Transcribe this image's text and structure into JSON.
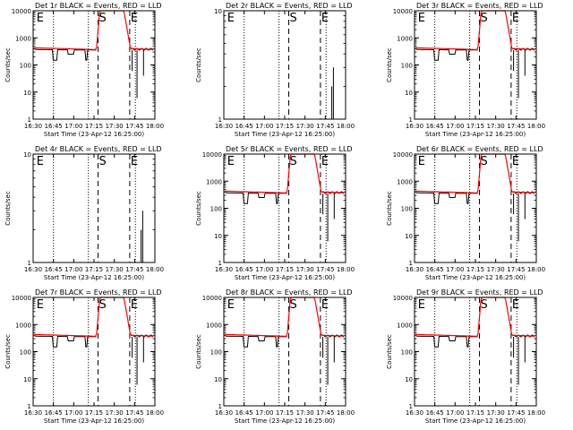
{
  "chart_data": [
    {
      "type": "line",
      "title": "Det 1r  BLACK = Events, RED = LLD",
      "xlabel": "Start Time (23-Apr-12 16:25:00)",
      "ylabel": "Counts/sec",
      "yscale": "log",
      "ylim": [
        1,
        10000
      ],
      "yticks": [
        "1",
        "10",
        "100",
        "1000",
        "10000"
      ],
      "xlim": [
        16.5,
        18.0
      ],
      "xticks": [
        "16:30",
        "16:45",
        "17:00",
        "17:15",
        "17:30",
        "17:45",
        "18:00"
      ],
      "markers": [
        {
          "label": "E",
          "x": 16.53
        },
        {
          "label": "S",
          "x": 17.3
        },
        {
          "label": "E",
          "x": 17.69
        }
      ],
      "dotted_lines": [
        16.75,
        17.18,
        17.76
      ],
      "dashed_lines": [
        17.3,
        17.69
      ],
      "has_rise": true,
      "notch_at": 17.16,
      "series": [
        {
          "name": "Events",
          "color": "#000000"
        },
        {
          "name": "LLD",
          "color": "#ff0000"
        }
      ]
    },
    {
      "type": "line",
      "title": "Det 2r  BLACK = Events, RED = LLD",
      "xlabel": "Start Time (23-Apr-12 16:25:00)",
      "ylabel": "Counts/sec",
      "yscale": "log",
      "ylim": [
        1,
        10
      ],
      "yticks": [
        "1",
        "10"
      ],
      "xlim": [
        16.5,
        18.0
      ],
      "xticks": [
        "16:30",
        "16:45",
        "17:00",
        "17:15",
        "17:30",
        "17:45",
        "18:00"
      ],
      "markers": [
        {
          "label": "E",
          "x": 16.53
        },
        {
          "label": "S",
          "x": 17.3
        },
        {
          "label": "E",
          "x": 17.69
        }
      ],
      "dotted_lines": [
        16.75,
        17.18,
        17.76
      ],
      "dashed_lines": [
        17.3,
        17.69
      ],
      "has_rise": false,
      "notch_at": 17.16,
      "series": [
        {
          "name": "Events",
          "color": "#000000"
        },
        {
          "name": "LLD",
          "color": "#ff0000"
        }
      ]
    },
    {
      "type": "line",
      "title": "Det 3r  BLACK = Events, RED = LLD",
      "xlabel": "Start Time (23-Apr-12 16:25:00)",
      "ylabel": "Counts/sec",
      "yscale": "log",
      "ylim": [
        1,
        10000
      ],
      "yticks": [
        "1",
        "10",
        "100",
        "1000",
        "10000"
      ],
      "xlim": [
        16.5,
        18.0
      ],
      "xticks": [
        "16:30",
        "16:45",
        "17:00",
        "17:15",
        "17:30",
        "17:45",
        "18:00"
      ],
      "markers": [
        {
          "label": "E",
          "x": 16.53
        },
        {
          "label": "S",
          "x": 17.3
        },
        {
          "label": "E",
          "x": 17.69
        }
      ],
      "dotted_lines": [
        16.75,
        17.18,
        17.76
      ],
      "dashed_lines": [
        17.3,
        17.69
      ],
      "has_rise": true,
      "notch_at": 17.16,
      "series": [
        {
          "name": "Events",
          "color": "#000000"
        },
        {
          "name": "LLD",
          "color": "#ff0000"
        }
      ]
    },
    {
      "type": "line",
      "title": "Det 4r  BLACK = Events, RED = LLD",
      "xlabel": "Start Time (23-Apr-12 16:25:00)",
      "ylabel": "Counts/sec",
      "yscale": "log",
      "ylim": [
        1,
        10
      ],
      "yticks": [
        "1",
        "10"
      ],
      "xlim": [
        16.5,
        18.0
      ],
      "xticks": [
        "16:30",
        "16:45",
        "17:00",
        "17:15",
        "17:30",
        "17:45",
        "18:00"
      ],
      "markers": [
        {
          "label": "E",
          "x": 16.53
        },
        {
          "label": "S",
          "x": 17.3
        },
        {
          "label": "E",
          "x": 17.69
        }
      ],
      "dotted_lines": [
        16.75,
        17.18,
        17.76
      ],
      "dashed_lines": [
        17.3,
        17.69
      ],
      "has_rise": false,
      "notch_at": 17.16,
      "series": [
        {
          "name": "Events",
          "color": "#000000"
        },
        {
          "name": "LLD",
          "color": "#ff0000"
        }
      ]
    },
    {
      "type": "line",
      "title": "Det 5r  BLACK = Events, RED = LLD",
      "xlabel": "Start Time (23-Apr-12 16:25:00)",
      "ylabel": "Counts/sec",
      "yscale": "log",
      "ylim": [
        1,
        10000
      ],
      "yticks": [
        "1",
        "10",
        "100",
        "1000",
        "10000"
      ],
      "xlim": [
        16.5,
        18.0
      ],
      "xticks": [
        "16:30",
        "16:45",
        "17:00",
        "17:15",
        "17:30",
        "17:45",
        "18:00"
      ],
      "markers": [
        {
          "label": "E",
          "x": 16.53
        },
        {
          "label": "S",
          "x": 17.3
        },
        {
          "label": "E",
          "x": 17.69
        }
      ],
      "dotted_lines": [
        16.75,
        17.18,
        17.76
      ],
      "dashed_lines": [
        17.3,
        17.69
      ],
      "has_rise": true,
      "notch_at": 17.16,
      "series": [
        {
          "name": "Events",
          "color": "#000000"
        },
        {
          "name": "LLD",
          "color": "#ff0000"
        }
      ]
    },
    {
      "type": "line",
      "title": "Det 6r  BLACK = Events, RED = LLD",
      "xlabel": "Start Time (23-Apr-12 16:25:00)",
      "ylabel": "Counts/sec",
      "yscale": "log",
      "ylim": [
        1,
        10000
      ],
      "yticks": [
        "1",
        "10",
        "100",
        "1000",
        "10000"
      ],
      "xlim": [
        16.5,
        18.0
      ],
      "xticks": [
        "16:30",
        "16:45",
        "17:00",
        "17:15",
        "17:30",
        "17:45",
        "18:00"
      ],
      "markers": [
        {
          "label": "E",
          "x": 16.53
        },
        {
          "label": "S",
          "x": 17.3
        },
        {
          "label": "E",
          "x": 17.69
        }
      ],
      "dotted_lines": [
        16.75,
        17.18,
        17.76
      ],
      "dashed_lines": [
        17.3,
        17.69
      ],
      "has_rise": true,
      "notch_at": 17.16,
      "series": [
        {
          "name": "Events",
          "color": "#000000"
        },
        {
          "name": "LLD",
          "color": "#ff0000"
        }
      ]
    },
    {
      "type": "line",
      "title": "Det 7r  BLACK = Events, RED = LLD",
      "xlabel": "Start Time (23-Apr-12 16:25:00)",
      "ylabel": "Counts/sec",
      "yscale": "log",
      "ylim": [
        1,
        10000
      ],
      "yticks": [
        "1",
        "10",
        "100",
        "1000",
        "10000"
      ],
      "xlim": [
        16.5,
        18.0
      ],
      "xticks": [
        "16:30",
        "16:45",
        "17:00",
        "17:15",
        "17:30",
        "17:45",
        "18:00"
      ],
      "markers": [
        {
          "label": "E",
          "x": 16.53
        },
        {
          "label": "S",
          "x": 17.3
        },
        {
          "label": "E",
          "x": 17.69
        }
      ],
      "dotted_lines": [
        16.75,
        17.18,
        17.76
      ],
      "dashed_lines": [
        17.3,
        17.69
      ],
      "has_rise": true,
      "notch_at": 17.16,
      "series": [
        {
          "name": "Events",
          "color": "#000000"
        },
        {
          "name": "LLD",
          "color": "#ff0000"
        }
      ]
    },
    {
      "type": "line",
      "title": "Det 8r  BLACK = Events, RED = LLD",
      "xlabel": "Start Time (23-Apr-12 16:25:00)",
      "ylabel": "Counts/sec",
      "yscale": "log",
      "ylim": [
        1,
        10000
      ],
      "yticks": [
        "1",
        "10",
        "100",
        "1000",
        "10000"
      ],
      "xlim": [
        16.5,
        18.0
      ],
      "xticks": [
        "16:30",
        "16:45",
        "17:00",
        "17:15",
        "17:30",
        "17:45",
        "18:00"
      ],
      "markers": [
        {
          "label": "E",
          "x": 16.53
        },
        {
          "label": "S",
          "x": 17.3
        },
        {
          "label": "E",
          "x": 17.69
        }
      ],
      "dotted_lines": [
        16.75,
        17.18,
        17.76
      ],
      "dashed_lines": [
        17.3,
        17.69
      ],
      "has_rise": true,
      "notch_at": 17.16,
      "series": [
        {
          "name": "Events",
          "color": "#000000"
        },
        {
          "name": "LLD",
          "color": "#ff0000"
        }
      ]
    },
    {
      "type": "line",
      "title": "Det 9r  BLACK = Events, RED = LLD",
      "xlabel": "Start Time (23-Apr-12 16:25:00)",
      "ylabel": "Counts/sec",
      "yscale": "log",
      "ylim": [
        1,
        10000
      ],
      "yticks": [
        "1",
        "10",
        "100",
        "1000",
        "10000"
      ],
      "xlim": [
        16.5,
        18.0
      ],
      "xticks": [
        "16:30",
        "16:45",
        "17:00",
        "17:15",
        "17:30",
        "17:45",
        "18:00"
      ],
      "markers": [
        {
          "label": "E",
          "x": 16.53
        },
        {
          "label": "S",
          "x": 17.3
        },
        {
          "label": "E",
          "x": 17.69
        }
      ],
      "dotted_lines": [
        16.75,
        17.18,
        17.76
      ],
      "dashed_lines": [
        17.3,
        17.69
      ],
      "has_rise": true,
      "notch_at": 17.16,
      "series": [
        {
          "name": "Events",
          "color": "#000000"
        },
        {
          "name": "LLD",
          "color": "#ff0000"
        }
      ]
    }
  ]
}
